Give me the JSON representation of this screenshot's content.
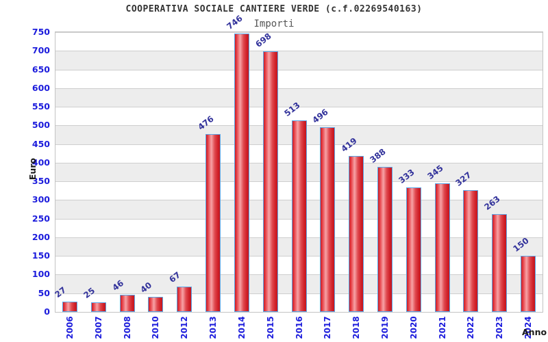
{
  "chart_data": {
    "type": "bar",
    "title": "COOPERATIVA SOCIALE CANTIERE VERDE (c.f.02269540163)",
    "legend_label": "Importi",
    "categories": [
      "2006",
      "2007",
      "2008",
      "2010",
      "2012",
      "2013",
      "2014",
      "2015",
      "2016",
      "2017",
      "2018",
      "2019",
      "2020",
      "2021",
      "2022",
      "2023",
      "2024"
    ],
    "values": [
      27,
      25,
      46,
      40,
      67,
      476,
      746,
      698,
      513,
      496,
      419,
      388,
      333,
      345,
      327,
      263,
      150
    ],
    "xlabel": "Anno",
    "ylabel": "Euro",
    "ylim": [
      0,
      750
    ],
    "ytick_step": 50,
    "grid": true,
    "legend_position": "top-center",
    "colors": {
      "bar_fill_edge": "#cb1c24",
      "bar_fill_highlight": "#f7a3a6",
      "bar_border": "#5aa7e8",
      "tick_label": "#1c1cdc",
      "value_label": "#32329b",
      "band_gray": "#ededed",
      "band_white": "#ffffff",
      "gridline": "#cecece",
      "title_text": "#333333",
      "legend_text": "#555555"
    }
  }
}
